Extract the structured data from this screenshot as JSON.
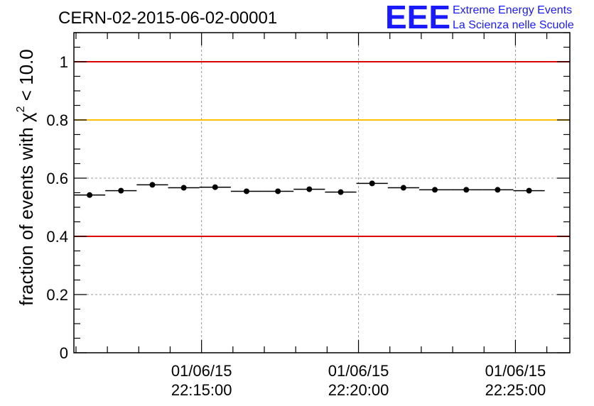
{
  "header": {
    "run_title": "CERN-02-2015-06-02-00001",
    "logo_text": "EEE",
    "logo_line1": "Extreme Energy Events",
    "logo_line2": "La Scienza nelle Scuole"
  },
  "chart_data": {
    "type": "scatter",
    "title": "CERN-02-2015-06-02-00001",
    "xlabel": "",
    "ylabel": "fraction of events with χ² < 10.0",
    "ylabel_parts": {
      "before": "fraction of events with ",
      "symbol": "χ",
      "sup": "2",
      "after": " < 10.0"
    },
    "ylim": [
      0,
      1.1
    ],
    "xlim": [
      "22:10:56",
      "22:26:44"
    ],
    "grid": true,
    "yticks": [
      {
        "value": 0,
        "label": "0"
      },
      {
        "value": 0.2,
        "label": "0.2"
      },
      {
        "value": 0.4,
        "label": "0.4"
      },
      {
        "value": 0.6,
        "label": "0.6"
      },
      {
        "value": 0.8,
        "label": "0.8"
      },
      {
        "value": 1,
        "label": "1"
      }
    ],
    "xticks": [
      {
        "time": "22:15:00",
        "date_label": "01/06/15",
        "time_label": "22:15:00"
      },
      {
        "time": "22:20:00",
        "date_label": "01/06/15",
        "time_label": "22:20:00"
      },
      {
        "time": "22:25:00",
        "date_label": "01/06/15",
        "time_label": "22:25:00"
      }
    ],
    "x_minor_step_seconds": 60,
    "reference_lines": [
      {
        "y": 1.0,
        "color": "#dd0000"
      },
      {
        "y": 0.8,
        "color": "#ffc000"
      },
      {
        "y": 0.4,
        "color": "#dd0000"
      }
    ],
    "series": [
      {
        "color": "#000000",
        "points": [
          {
            "x_start": "22:10:56",
            "x_end": "22:11:56",
            "y": 0.542
          },
          {
            "x_start": "22:11:56",
            "x_end": "22:12:56",
            "y": 0.557
          },
          {
            "x_start": "22:12:56",
            "x_end": "22:13:56",
            "y": 0.577
          },
          {
            "x_start": "22:13:56",
            "x_end": "22:14:56",
            "y": 0.567
          },
          {
            "x_start": "22:14:56",
            "x_end": "22:15:56",
            "y": 0.569
          },
          {
            "x_start": "22:15:56",
            "x_end": "22:16:56",
            "y": 0.555
          },
          {
            "x_start": "22:16:56",
            "x_end": "22:17:56",
            "y": 0.555
          },
          {
            "x_start": "22:17:56",
            "x_end": "22:18:56",
            "y": 0.562
          },
          {
            "x_start": "22:18:56",
            "x_end": "22:19:56",
            "y": 0.552
          },
          {
            "x_start": "22:19:56",
            "x_end": "22:20:56",
            "y": 0.582
          },
          {
            "x_start": "22:20:56",
            "x_end": "22:21:56",
            "y": 0.567
          },
          {
            "x_start": "22:21:56",
            "x_end": "22:22:56",
            "y": 0.56
          },
          {
            "x_start": "22:22:56",
            "x_end": "22:23:56",
            "y": 0.56
          },
          {
            "x_start": "22:23:56",
            "x_end": "22:24:56",
            "y": 0.56
          },
          {
            "x_start": "22:24:56",
            "x_end": "22:25:56",
            "y": 0.557
          }
        ]
      }
    ]
  }
}
